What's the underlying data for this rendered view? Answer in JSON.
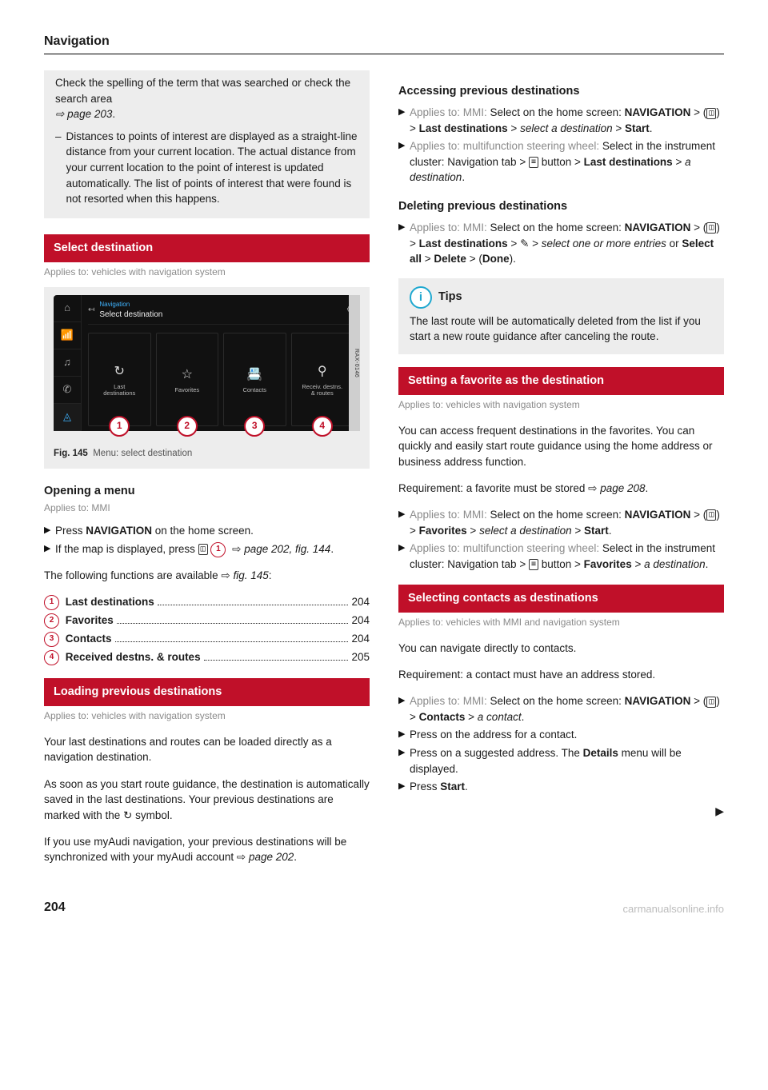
{
  "page": {
    "title": "Navigation",
    "number": "204",
    "watermark": "carmanualsonline.info"
  },
  "colors": {
    "accent_red": "#c01029",
    "gray_box": "#ededed",
    "applies_gray": "#8a8a8a",
    "tips_blue": "#1fa8d0"
  },
  "intro_box": {
    "para1_a": "Check the spelling of the term that was searched or check the search area ",
    "para1_ref": "page 203",
    "dash_text": "Distances to points of interest are displayed as a straight-line distance from your current location. The actual distance from your current location to the point of interest is updated automatically. The list of points of interest that were found is not resorted when this happens."
  },
  "select_dest": {
    "bar": "Select destination",
    "applies": "Applies to: vehicles with navigation system",
    "fig_no": "Fig. 145",
    "fig_caption": "Menu: select destination",
    "ref_strip": "RAX-0146",
    "mmi": {
      "crumb": "Navigation",
      "title": "Select destination",
      "tiles": [
        {
          "icon": "↻",
          "label": "Last\ndestinations"
        },
        {
          "icon": "☆",
          "label": "Favorites"
        },
        {
          "icon": "📇",
          "label": "Contacts"
        },
        {
          "icon": "⚲",
          "label": "Receiv. destns.\n& routes"
        }
      ]
    }
  },
  "opening_menu": {
    "head": "Opening a menu",
    "applies": "Applies to: MMI",
    "b1_a": "Press ",
    "b1_b": "NAVIGATION",
    "b1_c": " on the home screen.",
    "b2_a": "If the map is displayed, press ",
    "b2_b": " ⇨ ",
    "b2_c": "page 202, fig. 144",
    "following": "The following functions are available ⇨ ",
    "following_ref": "fig. 145",
    "toc": [
      {
        "n": "1",
        "label": "Last destinations",
        "page": "204"
      },
      {
        "n": "2",
        "label": "Favorites",
        "page": "204"
      },
      {
        "n": "3",
        "label": "Contacts",
        "page": "204"
      },
      {
        "n": "4",
        "label": "Received destns. & routes",
        "page": "205"
      }
    ]
  },
  "loading_prev": {
    "bar": "Loading previous destinations",
    "applies": "Applies to: vehicles with navigation system",
    "p1": "Your last destinations and routes can be loaded directly as a navigation destination.",
    "p2": "As soon as you start route guidance, the destination is automatically saved in the last destinations. Your previous destinations are marked with the ↻ symbol.",
    "p3_a": "If you use myAudi navigation, your previous destinations will be synchronized with your myAudi account ⇨ ",
    "p3_ref": "page 202"
  },
  "accessing_prev": {
    "head": "Accessing previous destinations",
    "b1_lead": "Applies to: MMI:",
    "b1_a": " Select on the home screen: ",
    "b1_nav": "NAVIGATION",
    "b1_b": " > ",
    "b1_c": " > ",
    "b1_last": "Last destinations",
    "b1_d": " > ",
    "b1_sel": "select a destination",
    "b1_e": " > ",
    "b1_start": "Start",
    "b2_lead": "Applies to: multifunction steering wheel:",
    "b2_a": " Select in the instrument cluster: Navigation tab > ",
    "b2_b": " button > ",
    "b2_last": "Last destinations",
    "b2_c": " > ",
    "b2_dest": "a destination"
  },
  "deleting_prev": {
    "head": "Deleting previous destinations",
    "b1_lead": "Applies to: MMI:",
    "b1_a": " Select on the home screen: ",
    "b1_nav": "NAVIGATION",
    "b1_b": " > ",
    "b1_c": " > ",
    "b1_last": "Last destinations",
    "b1_d": " > ",
    "b1_e": " > ",
    "b1_sel": "select one or more entries",
    "b1_or": " or ",
    "b1_all": "Select all",
    "b1_f": " > ",
    "b1_del": "Delete",
    "b1_g": " > (",
    "b1_done": "Done",
    "b1_h": ")."
  },
  "tips": {
    "head": "Tips",
    "body": "The last route will be automatically deleted from the list if you start a new route guidance after canceling the route."
  },
  "favorite_dest": {
    "bar": "Setting a favorite as the destination",
    "applies": "Applies to: vehicles with navigation system",
    "p1": "You can access frequent destinations in the favorites. You can quickly and easily start route guidance using the home address or business address function.",
    "req_a": "Requirement: a favorite must be stored ⇨ ",
    "req_ref": "page 208",
    "b1_lead": "Applies to: MMI:",
    "b1_a": " Select on the home screen: ",
    "b1_nav": "NAVIGATION",
    "b1_b": " > ",
    "b1_c": " > ",
    "b1_fav": "Favorites",
    "b1_d": " > ",
    "b1_sel": "select a destination",
    "b1_e": " > ",
    "b1_start": "Start",
    "b2_lead": "Applies to: multifunction steering wheel:",
    "b2_a": " Select in the instrument cluster: Navigation tab > ",
    "b2_b": " button > ",
    "b2_fav": "Favorites",
    "b2_c": " > ",
    "b2_dest": "a destination"
  },
  "contacts_dest": {
    "bar": "Selecting contacts as destinations",
    "applies": "Applies to: vehicles with MMI and navigation system",
    "p1": "You can navigate directly to contacts.",
    "req": "Requirement: a contact must have an address stored.",
    "b1_lead": "Applies to: MMI:",
    "b1_a": " Select on the home screen: ",
    "b1_nav": "NAVIGATION",
    "b1_b": " > ",
    "b1_c": " > ",
    "b1_con": "Contacts",
    "b1_d": " > ",
    "b1_sel": "a contact",
    "b2": "Press on the address for a contact.",
    "b3_a": "Press on a suggested address. The ",
    "b3_b": "Details",
    "b3_c": " menu will be displayed.",
    "b4_a": "Press ",
    "b4_b": "Start",
    "b4_c": "."
  }
}
